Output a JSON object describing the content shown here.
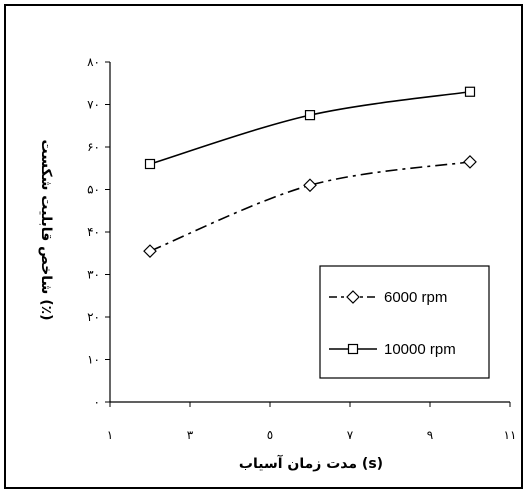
{
  "chart_data": {
    "type": "line",
    "xlabel": "مدت زمان آسیاب (s)",
    "ylabel": "شاخص قابلیت شکست (٪)",
    "xlim": [
      1,
      11
    ],
    "ylim": [
      0,
      80
    ],
    "x_ticks": [
      1,
      3,
      5,
      7,
      9,
      11
    ],
    "x_tick_labels": [
      "١",
      "٣",
      "٥",
      "٧",
      "٩",
      "١١"
    ],
    "y_ticks": [
      0,
      10,
      20,
      30,
      40,
      50,
      60,
      70,
      80
    ],
    "y_tick_labels": [
      "٠",
      "١٠",
      "٢٠",
      "٣٠",
      "۴٠",
      "۵٠",
      "۶٠",
      "٧٠",
      "٨٠"
    ],
    "grid": false,
    "legend_position": "bottom-right",
    "series": [
      {
        "name": "6000 rpm",
        "marker": "diamond",
        "line_style": "dash-dot",
        "x": [
          2,
          6,
          10
        ],
        "y": [
          35.5,
          51,
          56.5
        ],
        "color": "#000000"
      },
      {
        "name": "10000 rpm",
        "marker": "square",
        "line_style": "solid",
        "x": [
          2,
          6,
          10
        ],
        "y": [
          56,
          67.5,
          73
        ],
        "color": "#000000"
      }
    ]
  }
}
